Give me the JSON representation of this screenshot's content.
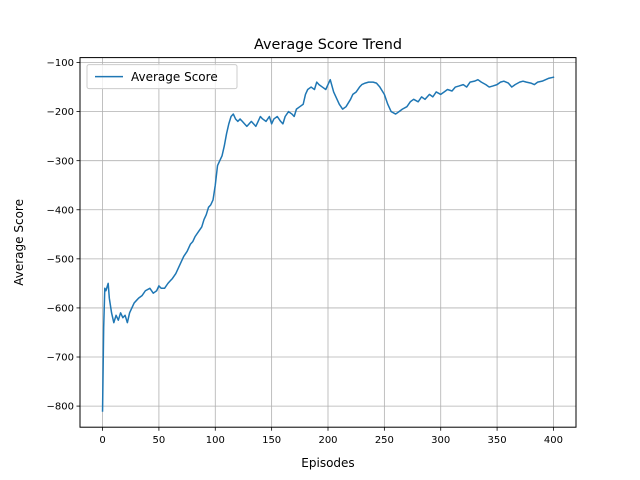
{
  "chart_data": {
    "type": "line",
    "title": "Average Score Trend",
    "xlabel": "Episodes",
    "ylabel": "Average Score",
    "xlim": [
      -20,
      420
    ],
    "ylim": [
      -843,
      -90
    ],
    "grid": true,
    "legend_position": "top-left",
    "x_ticks": [
      0,
      50,
      100,
      150,
      200,
      250,
      300,
      350,
      400
    ],
    "x_tick_labels": [
      "0",
      "50",
      "100",
      "150",
      "200",
      "250",
      "300",
      "350",
      "400"
    ],
    "y_ticks": [
      -800,
      -700,
      -600,
      -500,
      -400,
      -300,
      -200,
      -100
    ],
    "y_tick_labels": [
      "−800",
      "−700",
      "−600",
      "−500",
      "−400",
      "−300",
      "−200",
      "−100"
    ],
    "colors": {
      "series": "#1f77b4",
      "grid": "#b0b0b0"
    },
    "series": [
      {
        "name": "Average Score",
        "x": [
          0,
          1,
          2,
          3,
          5,
          6,
          8,
          10,
          12,
          14,
          16,
          18,
          20,
          22,
          24,
          26,
          28,
          30,
          32,
          35,
          38,
          42,
          45,
          48,
          50,
          52,
          55,
          58,
          60,
          62,
          65,
          68,
          70,
          72,
          75,
          78,
          80,
          82,
          85,
          88,
          90,
          92,
          94,
          96,
          98,
          100,
          102,
          104,
          106,
          108,
          110,
          112,
          114,
          116,
          118,
          120,
          122,
          124,
          126,
          128,
          130,
          132,
          134,
          136,
          138,
          140,
          142,
          145,
          148,
          150,
          152,
          155,
          158,
          160,
          162,
          165,
          168,
          170,
          172,
          175,
          178,
          180,
          182,
          185,
          188,
          190,
          192,
          195,
          198,
          200,
          202,
          205,
          208,
          210,
          213,
          216,
          220,
          222,
          225,
          228,
          230,
          233,
          236,
          240,
          243,
          246,
          250,
          253,
          256,
          260,
          263,
          266,
          270,
          273,
          276,
          280,
          283,
          286,
          290,
          293,
          296,
          300,
          303,
          306,
          310,
          313,
          316,
          320,
          323,
          326,
          330,
          333,
          336,
          340,
          343,
          346,
          350,
          353,
          356,
          360,
          363,
          366,
          370,
          373,
          376,
          380,
          383,
          386,
          390,
          393,
          396,
          400
        ],
        "values": [
          -810,
          -640,
          -560,
          -565,
          -550,
          -580,
          -610,
          -630,
          -615,
          -625,
          -610,
          -620,
          -615,
          -630,
          -610,
          -600,
          -590,
          -585,
          -580,
          -575,
          -565,
          -560,
          -570,
          -565,
          -555,
          -560,
          -560,
          -550,
          -545,
          -540,
          -530,
          -515,
          -505,
          -495,
          -485,
          -470,
          -465,
          -455,
          -445,
          -435,
          -420,
          -410,
          -395,
          -390,
          -380,
          -350,
          -310,
          -300,
          -290,
          -270,
          -245,
          -225,
          -210,
          -205,
          -215,
          -220,
          -215,
          -220,
          -225,
          -230,
          -225,
          -220,
          -225,
          -230,
          -220,
          -210,
          -215,
          -220,
          -210,
          -225,
          -215,
          -210,
          -220,
          -225,
          -210,
          -200,
          -205,
          -210,
          -195,
          -190,
          -185,
          -165,
          -155,
          -150,
          -155,
          -140,
          -145,
          -150,
          -155,
          -145,
          -135,
          -160,
          -175,
          -185,
          -195,
          -190,
          -175,
          -165,
          -160,
          -150,
          -145,
          -142,
          -140,
          -140,
          -142,
          -150,
          -165,
          -185,
          -200,
          -205,
          -200,
          -195,
          -190,
          -180,
          -175,
          -180,
          -170,
          -175,
          -165,
          -170,
          -160,
          -165,
          -160,
          -155,
          -158,
          -150,
          -148,
          -145,
          -150,
          -140,
          -138,
          -135,
          -140,
          -145,
          -150,
          -148,
          -145,
          -140,
          -138,
          -142,
          -150,
          -145,
          -140,
          -138,
          -140,
          -142,
          -145,
          -140,
          -138,
          -135,
          -132,
          -130
        ]
      }
    ]
  }
}
